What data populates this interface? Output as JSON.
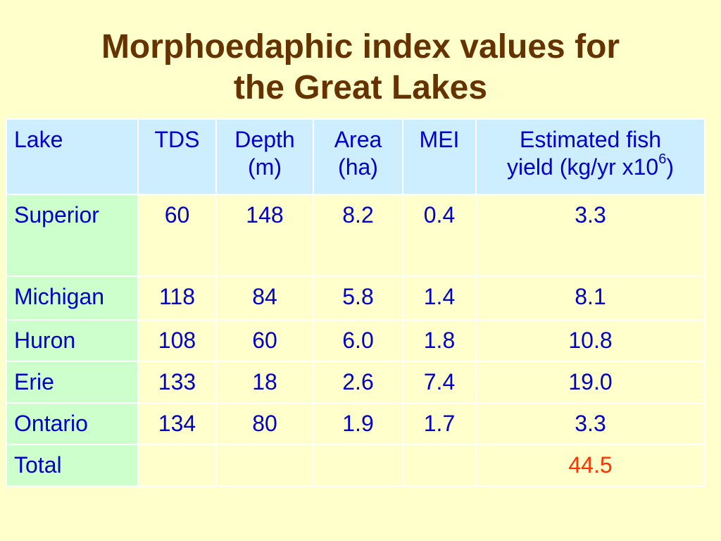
{
  "slide": {
    "title_line1": "Morphoedaphic index values for",
    "title_line2": "the Great Lakes"
  },
  "colors": {
    "background": "#ffffcc",
    "title": "#663300",
    "header_fill": "#cceeff",
    "lake_column_fill": "#ccffcc",
    "cell_text": "#0000cc",
    "highlight_text": "#ff3300",
    "grid_lines": "#ffffff"
  },
  "table": {
    "headers": {
      "lake": "Lake",
      "tds": "TDS",
      "depth_line1": "Depth",
      "depth_line2": "(m)",
      "area_line1": "Area",
      "area_line2": "(ha)",
      "mei": "MEI",
      "yield_line1": "Estimated fish",
      "yield_line2_prefix": "yield (kg/yr x10",
      "yield_superscript": "6",
      "yield_line2_suffix": ")"
    },
    "rows": [
      {
        "lake": "Superior",
        "tds": "60",
        "depth": "148",
        "area": "8.2",
        "mei": "0.4",
        "yield": "3.3"
      },
      {
        "lake": "Michigan",
        "tds": "118",
        "depth": "84",
        "area": "5.8",
        "mei": "1.4",
        "yield": "8.1"
      },
      {
        "lake": "Huron",
        "tds": "108",
        "depth": "60",
        "area": "6.0",
        "mei": "1.8",
        "yield": "10.8"
      },
      {
        "lake": "Erie",
        "tds": "133",
        "depth": "18",
        "area": "2.6",
        "mei": "7.4",
        "yield": "19.0"
      },
      {
        "lake": "Ontario",
        "tds": "134",
        "depth": "80",
        "area": "1.9",
        "mei": "1.7",
        "yield": "3.3"
      }
    ],
    "total": {
      "label": "Total",
      "tds": "",
      "depth": "",
      "area": "",
      "mei": "",
      "yield": "44.5"
    }
  }
}
